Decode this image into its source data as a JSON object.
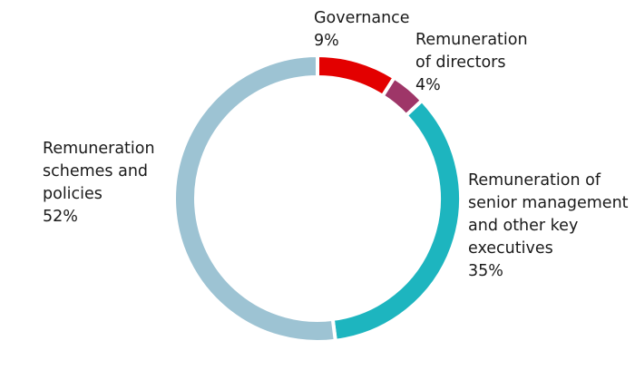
{
  "chart_data": {
    "type": "pie",
    "variant": "donut",
    "title": "",
    "start": "top",
    "direction": "clockwise",
    "slices": [
      {
        "label_lines": [
          "Governance"
        ],
        "label": "Governance",
        "value": 9,
        "value_label": "9%",
        "color": "#e30000"
      },
      {
        "label_lines": [
          "Remuneration",
          "of directors"
        ],
        "label": "Remuneration of directors",
        "value": 4,
        "value_label": "4%",
        "color": "#9e3668"
      },
      {
        "label_lines": [
          "Remuneration of",
          "senior management",
          "and other key",
          "executives"
        ],
        "label": "Remuneration of senior management and other key executives",
        "value": 35,
        "value_label": "35%",
        "color": "#1db5bf"
      },
      {
        "label_lines": [
          "Remuneration",
          "schemes and",
          "policies"
        ],
        "label": "Remuneration schemes and policies",
        "value": 52,
        "value_label": "52%",
        "color": "#9dc3d3"
      }
    ]
  }
}
